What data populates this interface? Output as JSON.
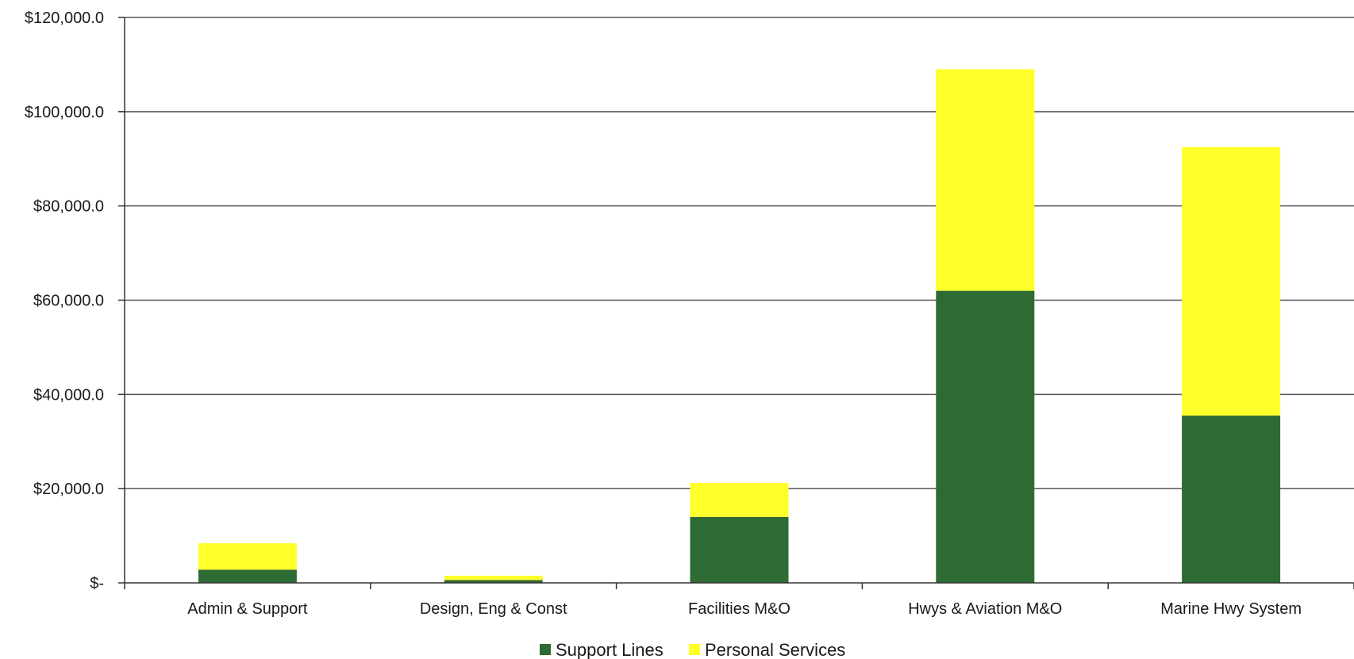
{
  "chart_data": {
    "type": "bar",
    "stacked": true,
    "categories": [
      "Admin & Support",
      "Design, Eng & Const",
      "Facilities M&O",
      "Hwys & Aviation M&O",
      "Marine Hwy System"
    ],
    "series": [
      {
        "name": "Support Lines",
        "color": "#2e6b34",
        "values": [
          2800,
          600,
          14000,
          62000,
          35500
        ]
      },
      {
        "name": "Personal Services",
        "color": "#ffff2a",
        "values": [
          5600,
          900,
          7200,
          47000,
          57000
        ]
      }
    ],
    "ylim": [
      0,
      120000
    ],
    "yticks": [
      0,
      20000,
      40000,
      60000,
      80000,
      100000,
      120000
    ],
    "ytick_labels": [
      "$-",
      "$20,000.0",
      "$40,000.0",
      "$60,000.0",
      "$80,000.0",
      "$100,000.0",
      "$120,000.0"
    ],
    "grid": true,
    "legend_position": "bottom"
  }
}
